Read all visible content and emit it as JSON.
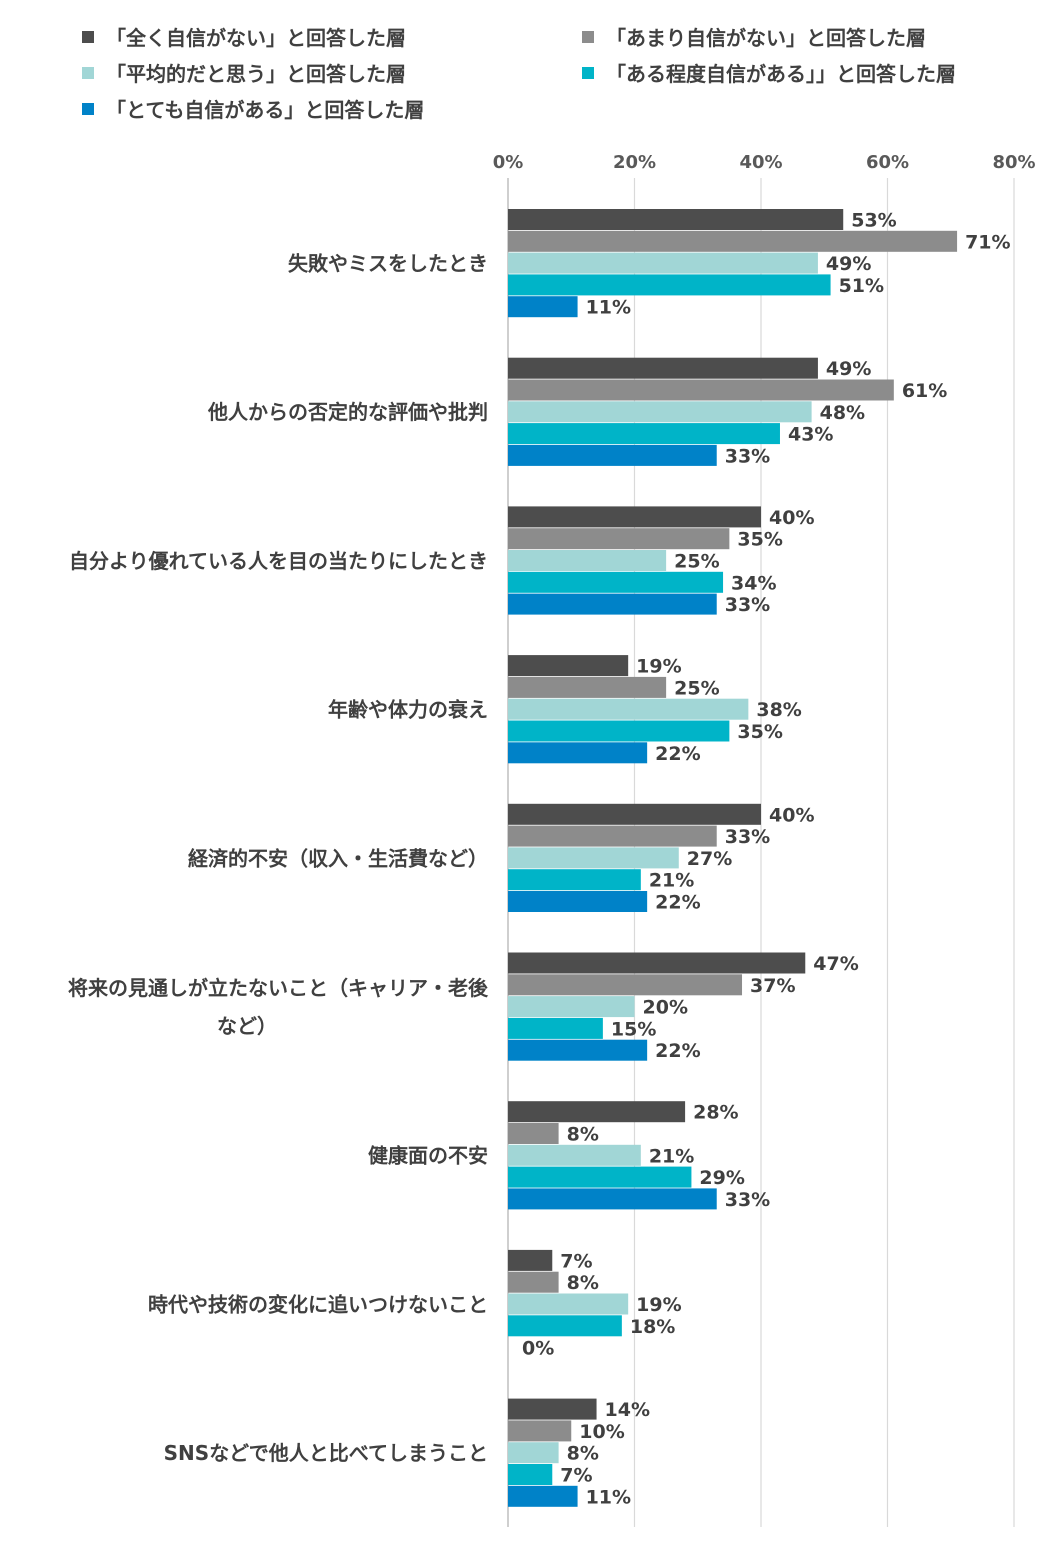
{
  "chart_data": {
    "type": "bar",
    "orientation": "horizontal",
    "xlim": [
      0,
      80
    ],
    "x_ticks": [
      "0%",
      "20%",
      "40%",
      "60%",
      "80%"
    ],
    "grid": true,
    "legend_position": "top",
    "value_suffix": "%",
    "categories": [
      [
        "失敗やミスをしたとき"
      ],
      [
        "他人からの否定的な評価や批判"
      ],
      [
        "自分より優れている人を目の当たりにしたとき"
      ],
      [
        "年齢や体力の衰え"
      ],
      [
        "経済的不安（収入・生活費など）"
      ],
      [
        "将来の見通しが立たないこと（キャリア・老後",
        "など）"
      ],
      [
        "健康面の不安"
      ],
      [
        "時代や技術の変化に追いつけないこと"
      ],
      [
        "SNSなどで他人と比べてしまうこと"
      ]
    ],
    "series": [
      {
        "name": "「全く自信がない」と回答した層",
        "color": "#4d4d4d",
        "values": [
          53,
          49,
          40,
          19,
          40,
          47,
          28,
          7,
          14
        ]
      },
      {
        "name": "「あまり自信がない」と回答した層",
        "color": "#8c8c8c",
        "values": [
          71,
          61,
          35,
          25,
          33,
          37,
          8,
          8,
          10
        ]
      },
      {
        "name": "「平均的だと思う」と回答した層",
        "color": "#a1d6d6",
        "values": [
          49,
          48,
          25,
          38,
          27,
          20,
          21,
          19,
          8
        ]
      },
      {
        "name": "「ある程度自信がある」」と回答した層",
        "color": "#00b4c8",
        "values": [
          51,
          43,
          34,
          35,
          21,
          15,
          29,
          18,
          7
        ]
      },
      {
        "name": "「とても自信がある」と回答した層",
        "color": "#0082c8",
        "values": [
          11,
          33,
          33,
          22,
          22,
          22,
          33,
          0,
          11
        ]
      }
    ]
  }
}
